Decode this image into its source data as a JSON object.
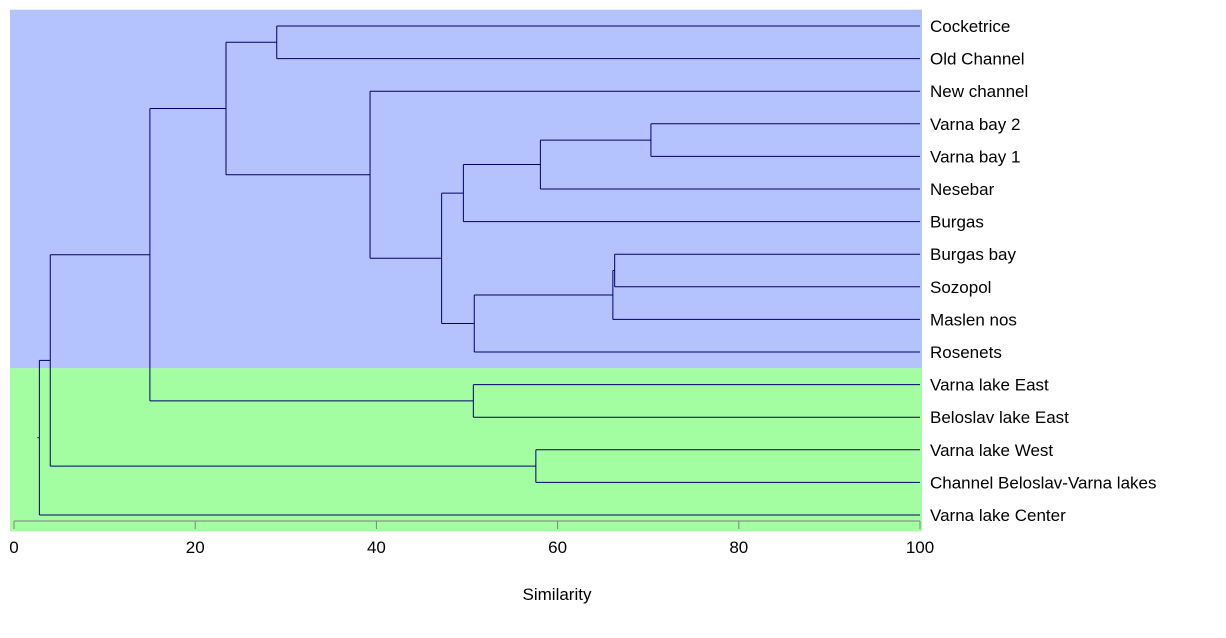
{
  "chart_data": {
    "type": "dendrogram",
    "xlabel": "Similarity",
    "xlim": [
      0,
      100
    ],
    "xticks": [
      0,
      20,
      40,
      60,
      80,
      100
    ],
    "grid": false,
    "leaves": [
      "Cocketrice",
      "Old Channel",
      "New channel",
      "Varna bay 2",
      "Varna bay 1",
      "Nesebar",
      "Burgas",
      "Burgas bay",
      "Sozopol",
      "Maslen nos",
      "Rosenets",
      "Varna lake East",
      "Beloslav lake East",
      "Varna lake West",
      "Channel Beloslav-Varna lakes",
      "Varna lake Center"
    ],
    "merges": [
      {
        "id": "m1",
        "a": "Cocketrice",
        "b": "Old Channel",
        "similarity": 29
      },
      {
        "id": "m2",
        "a": "Varna bay 2",
        "b": "Varna bay 1",
        "similarity": 70.3
      },
      {
        "id": "m3",
        "a": "m2",
        "b": "Nesebar",
        "similarity": 58.1
      },
      {
        "id": "m4",
        "a": "m3",
        "b": "Burgas",
        "similarity": 49.6
      },
      {
        "id": "m5",
        "a": "Burgas bay",
        "b": "Sozopol",
        "similarity": 66.3
      },
      {
        "id": "m6",
        "a": "m5",
        "b": "Maslen nos",
        "similarity": 66.1
      },
      {
        "id": "m7",
        "a": "m6",
        "b": "Rosenets",
        "similarity": 50.8
      },
      {
        "id": "m8",
        "a": "m4",
        "b": "m7",
        "similarity": 47.2
      },
      {
        "id": "m9",
        "a": "New channel",
        "b": "m8",
        "similarity": 39.3
      },
      {
        "id": "m10",
        "a": "m1",
        "b": "m9",
        "similarity": 23.4
      },
      {
        "id": "m11",
        "a": "Varna lake East",
        "b": "Beloslav lake East",
        "similarity": 50.7
      },
      {
        "id": "m12",
        "a": "m10",
        "b": "m11",
        "similarity": 15
      },
      {
        "id": "m13",
        "a": "Varna lake West",
        "b": "Channel Beloslav-Varna lakes",
        "similarity": 57.6
      },
      {
        "id": "m14",
        "a": "m12",
        "b": "m13",
        "similarity": 4
      },
      {
        "id": "m15",
        "a": "m14",
        "b": "Varna lake Center",
        "similarity": 2.8
      }
    ],
    "groups": [
      {
        "members": [
          "Cocketrice",
          "Old Channel",
          "New channel",
          "Varna bay 2",
          "Varna bay 1",
          "Nesebar",
          "Burgas",
          "Burgas bay",
          "Sozopol",
          "Maslen nos",
          "Rosenets"
        ],
        "color": "#b4c3fe"
      },
      {
        "members": [
          "Varna lake East",
          "Beloslav lake East",
          "Varna lake West",
          "Channel Beloslav-Varna lakes",
          "Varna lake Center"
        ],
        "color": "#a3fea2"
      }
    ],
    "colors": {
      "branch": "#000066",
      "axis": "#808080"
    }
  }
}
